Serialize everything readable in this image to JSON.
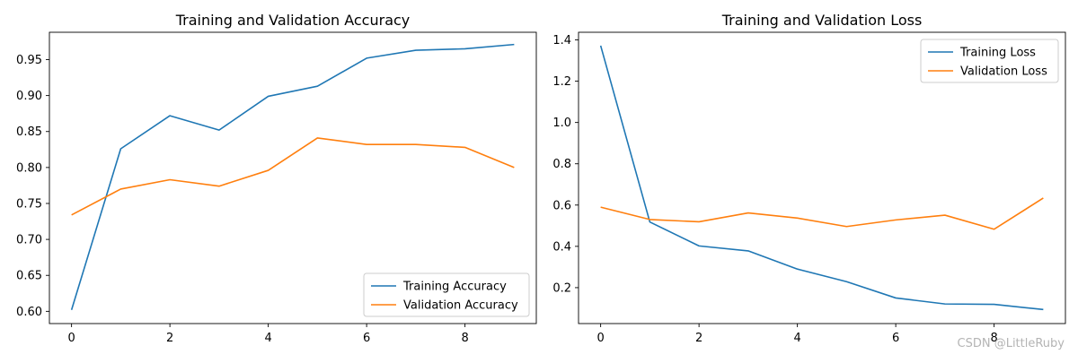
{
  "colors": {
    "training": "#1f77b4",
    "validation": "#ff7f0e"
  },
  "watermark": "CSDN @LittleRuby",
  "chart_data": [
    {
      "type": "line",
      "title": "Training and Validation Accuracy",
      "xlabel": "",
      "ylabel": "",
      "x": [
        0,
        1,
        2,
        3,
        4,
        5,
        6,
        7,
        8,
        9
      ],
      "xlim": [
        -0.45,
        9.45
      ],
      "ylim": [
        0.583,
        0.988
      ],
      "xticks": [
        "0",
        "2",
        "4",
        "6",
        "8"
      ],
      "yticks": [
        "0.60",
        "0.65",
        "0.70",
        "0.75",
        "0.80",
        "0.85",
        "0.90",
        "0.95"
      ],
      "grid": false,
      "legend_position": "lower-right",
      "series": [
        {
          "name": "Training Accuracy",
          "values": [
            0.602,
            0.826,
            0.872,
            0.852,
            0.899,
            0.913,
            0.952,
            0.963,
            0.965,
            0.971
          ]
        },
        {
          "name": "Validation Accuracy",
          "values": [
            0.734,
            0.77,
            0.783,
            0.774,
            0.796,
            0.841,
            0.832,
            0.832,
            0.828,
            0.8
          ]
        }
      ]
    },
    {
      "type": "line",
      "title": "Training and Validation Loss",
      "xlabel": "",
      "ylabel": "",
      "x": [
        0,
        1,
        2,
        3,
        4,
        5,
        6,
        7,
        8,
        9
      ],
      "xlim": [
        -0.45,
        9.45
      ],
      "ylim": [
        0.026,
        1.437
      ],
      "xticks": [
        "0",
        "2",
        "4",
        "6",
        "8"
      ],
      "yticks": [
        "0.2",
        "0.4",
        "0.6",
        "0.8",
        "1.0",
        "1.2",
        "1.4"
      ],
      "grid": false,
      "legend_position": "upper-right",
      "series": [
        {
          "name": "Training Loss",
          "values": [
            1.372,
            0.518,
            0.402,
            0.378,
            0.29,
            0.229,
            0.15,
            0.121,
            0.119,
            0.094
          ]
        },
        {
          "name": "Validation Loss",
          "values": [
            0.59,
            0.53,
            0.519,
            0.562,
            0.537,
            0.496,
            0.528,
            0.551,
            0.483,
            0.634
          ]
        }
      ]
    }
  ]
}
